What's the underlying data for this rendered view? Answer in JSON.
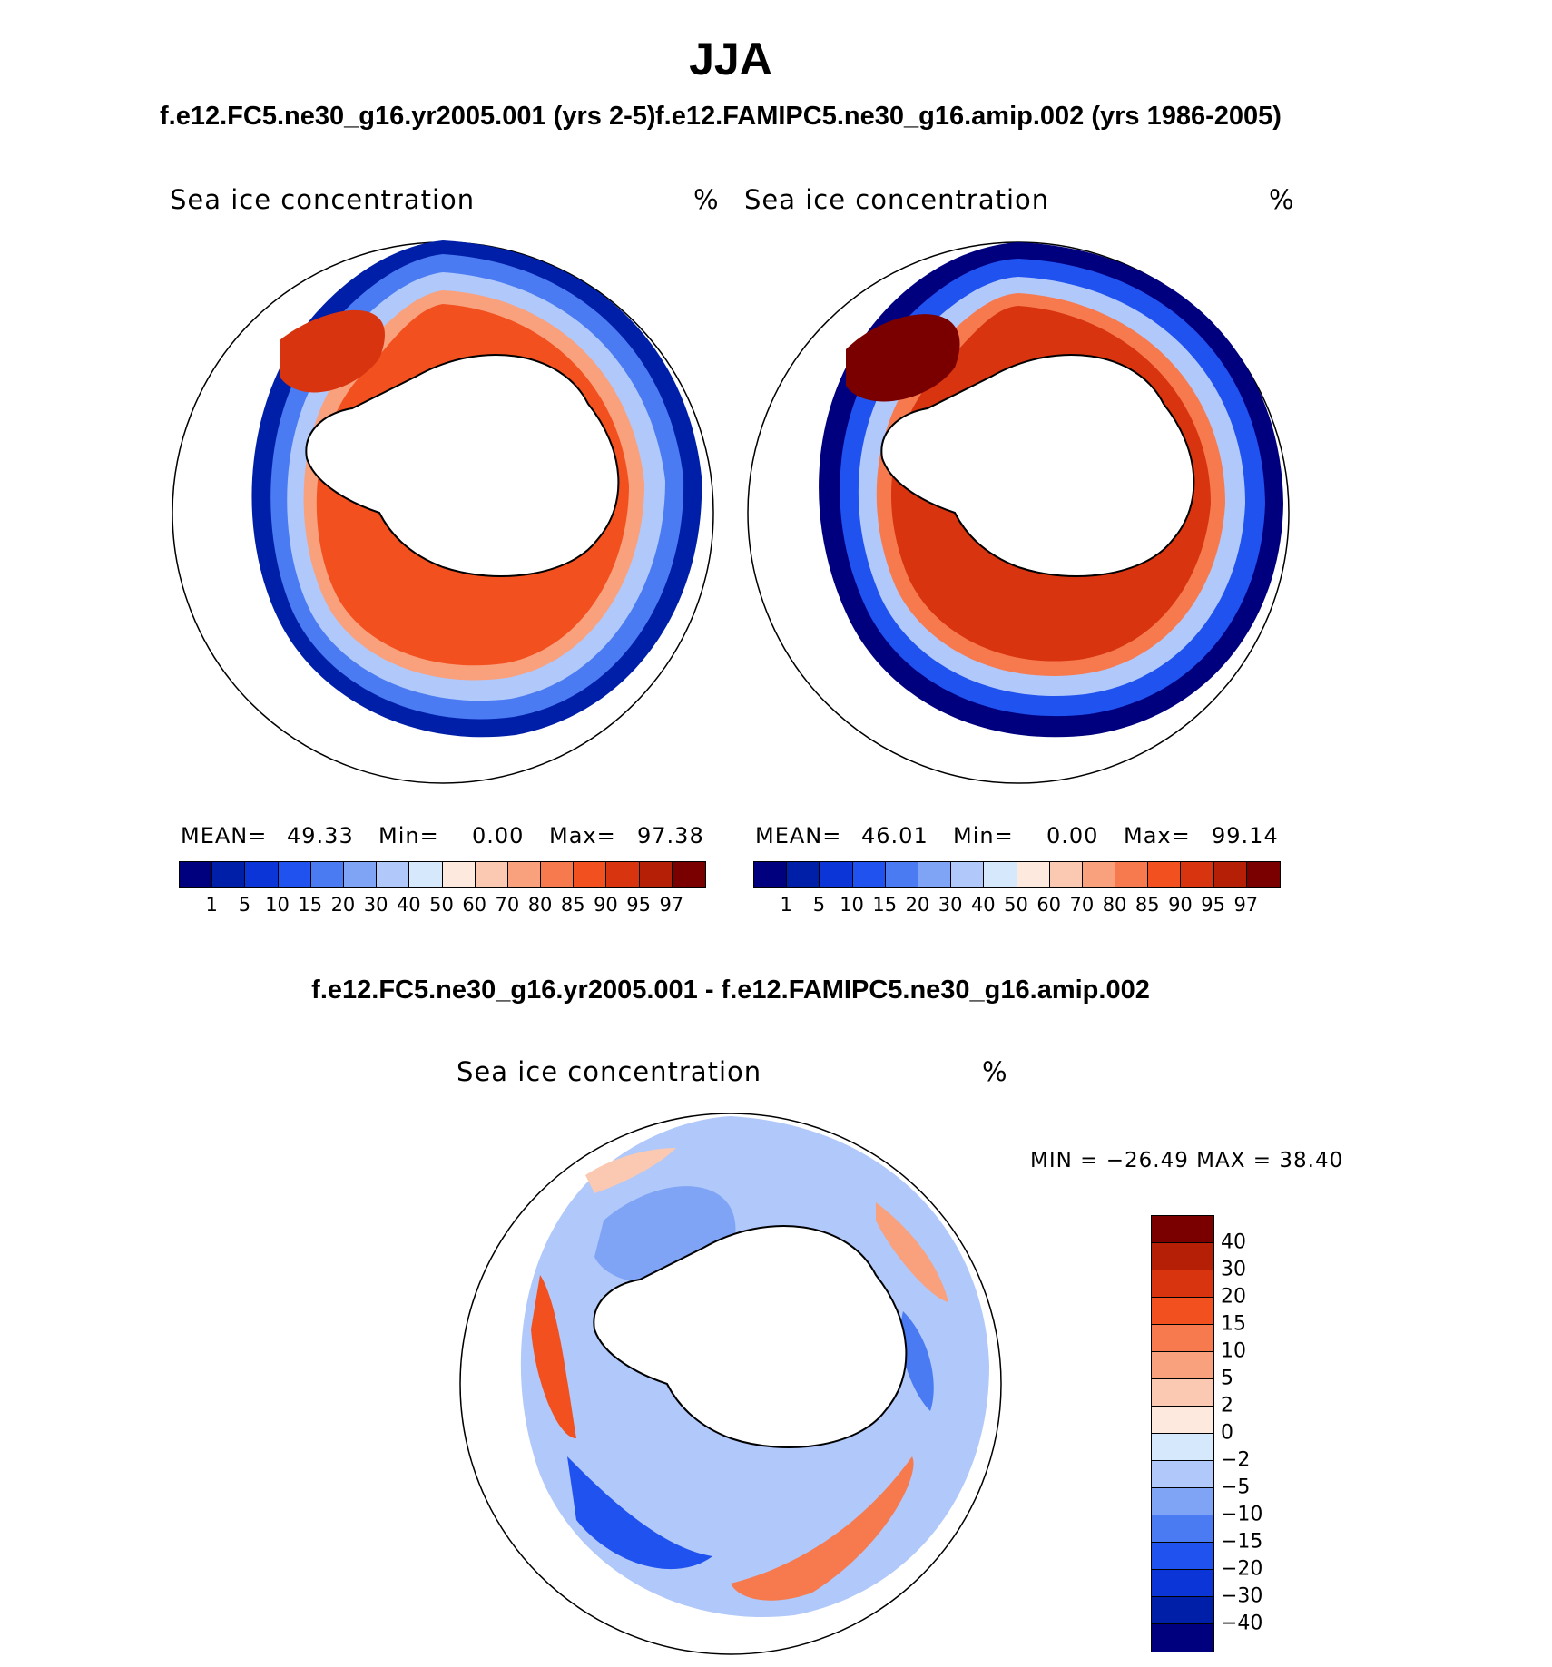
{
  "title": "JJA",
  "subtitles": [
    "f.e12.FC5.ne30_g16.yr2005.001 (yrs 2-5)",
    "f.e12.FAMIPC5.ne30_g16.amip.002 (yrs 1986-2005)"
  ],
  "diff_title": "f.e12.FC5.ne30_g16.yr2005.001 - f.e12.FAMIPC5.ne30_g16.amip.002",
  "panels": [
    {
      "label": "Sea ice concentration",
      "units": "%",
      "stats": {
        "mean_label": "MEAN=",
        "mean": "49.33",
        "min_label": "Min=",
        "min": "0.00",
        "max_label": "Max=",
        "max": "97.38"
      }
    },
    {
      "label": "Sea ice concentration",
      "units": "%",
      "stats": {
        "mean_label": "MEAN=",
        "mean": "46.01",
        "min_label": "Min=",
        "min": "0.00",
        "max_label": "Max=",
        "max": "99.14"
      }
    }
  ],
  "diff_panel": {
    "label": "Sea ice concentration",
    "units": "%",
    "minmax": "MIN = −26.49 MAX =   38.40"
  },
  "colorbar_abs": {
    "levels": [
      "1",
      "5",
      "10",
      "15",
      "20",
      "30",
      "40",
      "50",
      "60",
      "70",
      "80",
      "85",
      "90",
      "95",
      "97"
    ],
    "colors": [
      "#00007f",
      "#001fa8",
      "#0b35d6",
      "#2052f0",
      "#4a7bf2",
      "#7fa3f5",
      "#b0c8fa",
      "#d6e8fb",
      "#fde9dd",
      "#fbc9b1",
      "#f9a07d",
      "#f77a4f",
      "#f2501f",
      "#d83410",
      "#b41f06",
      "#7a0000"
    ]
  },
  "colorbar_diff": {
    "levels": [
      "40",
      "30",
      "20",
      "15",
      "10",
      "5",
      "2",
      "0",
      "−2",
      "−5",
      "−10",
      "−15",
      "−20",
      "−30",
      "−40"
    ],
    "colors": [
      "#7a0000",
      "#b41f06",
      "#d83410",
      "#f2501f",
      "#f77a4f",
      "#f9a07d",
      "#fbc9b1",
      "#fde9dd",
      "#d6e8fb",
      "#b0c8fa",
      "#7fa3f5",
      "#4a7bf2",
      "#2052f0",
      "#0b35d6",
      "#001fa8",
      "#00007f"
    ]
  }
}
